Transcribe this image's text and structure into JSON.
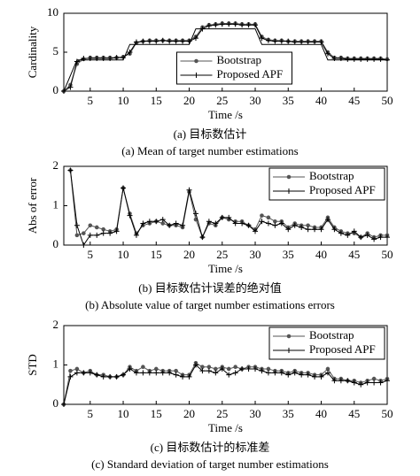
{
  "chart_data": [
    {
      "type": "line",
      "y_label": "Cardinality",
      "x_label": "Time /s",
      "caption_cn": "(a) 目标数估计",
      "caption_en": "(a) Mean of target number estimations",
      "x": [
        1,
        2,
        3,
        4,
        5,
        6,
        7,
        8,
        9,
        10,
        11,
        12,
        13,
        14,
        15,
        16,
        17,
        18,
        19,
        20,
        21,
        22,
        23,
        24,
        25,
        26,
        27,
        28,
        29,
        30,
        31,
        32,
        33,
        34,
        35,
        36,
        37,
        38,
        39,
        40,
        41,
        42,
        43,
        44,
        45,
        46,
        47,
        48,
        49,
        50
      ],
      "xlim": [
        1,
        50
      ],
      "xticks": [
        5,
        10,
        15,
        20,
        25,
        30,
        35,
        40,
        45,
        50
      ],
      "ylim": [
        0,
        10
      ],
      "yticks": [
        0,
        5,
        10
      ],
      "legend": "lower center",
      "series": [
        {
          "name": "Bootstrap",
          "color": "#555555",
          "marker": "o",
          "values": [
            0,
            0.8,
            3.5,
            4.1,
            4.3,
            4.3,
            4.3,
            4.3,
            4.3,
            4.4,
            4.8,
            6.2,
            6.4,
            6.5,
            6.5,
            6.5,
            6.5,
            6.5,
            6.5,
            6.5,
            7.0,
            8.2,
            8.5,
            8.6,
            8.7,
            8.7,
            8.7,
            8.6,
            8.6,
            8.6,
            7.0,
            6.6,
            6.5,
            6.5,
            6.4,
            6.4,
            6.4,
            6.4,
            6.4,
            6.4,
            5.0,
            4.3,
            4.3,
            4.2,
            4.2,
            4.2,
            4.2,
            4.2,
            4.2,
            4.1
          ]
        },
        {
          "name": "Proposed APF",
          "color": "#000000",
          "marker": "+",
          "values": [
            0,
            0.5,
            3.8,
            4.2,
            4.2,
            4.2,
            4.2,
            4.2,
            4.3,
            4.3,
            5.0,
            6.3,
            6.4,
            6.4,
            6.4,
            6.5,
            6.4,
            6.4,
            6.4,
            6.4,
            6.8,
            8.0,
            8.4,
            8.5,
            8.6,
            8.6,
            8.6,
            8.5,
            8.5,
            8.5,
            6.8,
            6.5,
            6.4,
            6.4,
            6.4,
            6.3,
            6.3,
            6.3,
            6.3,
            6.3,
            4.8,
            4.2,
            4.2,
            4.1,
            4.1,
            4.1,
            4.1,
            4.1,
            4.1,
            4.0
          ]
        },
        {
          "color": "#000000",
          "values": [
            0,
            2,
            4,
            4,
            4,
            4,
            4,
            4,
            4,
            4,
            6,
            6,
            6,
            6,
            6,
            6,
            6,
            6,
            6,
            6,
            8,
            8,
            8,
            8,
            8,
            8,
            8,
            8,
            8,
            8,
            6,
            6,
            6,
            6,
            6,
            6,
            6,
            6,
            6,
            6,
            4,
            4,
            4,
            4,
            4,
            4,
            4,
            4,
            4,
            4
          ]
        }
      ]
    },
    {
      "type": "line",
      "y_label": "Abs of error",
      "x_label": "Time /s",
      "caption_cn": "(b) 目标数估计误差的绝对值",
      "caption_en": "(b) Absolute value of target number estimations errors",
      "x": [
        1,
        2,
        3,
        4,
        5,
        6,
        7,
        8,
        9,
        10,
        11,
        12,
        13,
        14,
        15,
        16,
        17,
        18,
        19,
        20,
        21,
        22,
        23,
        24,
        25,
        26,
        27,
        28,
        29,
        30,
        31,
        32,
        33,
        34,
        35,
        36,
        37,
        38,
        39,
        40,
        41,
        42,
        43,
        44,
        45,
        46,
        47,
        48,
        49,
        50
      ],
      "xlim": [
        1,
        50
      ],
      "xticks": [
        5,
        10,
        15,
        20,
        25,
        30,
        35,
        40,
        45,
        50
      ],
      "ylim": [
        0,
        2
      ],
      "yticks": [
        0,
        1,
        2
      ],
      "legend": "upper right",
      "series": [
        {
          "name": "Bootstrap",
          "color": "#555555",
          "marker": "o",
          "values": [
            null,
            1.9,
            0.25,
            0.3,
            0.5,
            0.45,
            0.4,
            0.35,
            0.4,
            1.45,
            0.8,
            0.3,
            0.5,
            0.55,
            0.6,
            0.55,
            0.5,
            0.5,
            0.45,
            1.35,
            0.65,
            0.2,
            0.55,
            0.5,
            0.7,
            0.65,
            0.6,
            0.6,
            0.5,
            0.4,
            0.75,
            0.7,
            0.6,
            0.6,
            0.45,
            0.55,
            0.5,
            0.5,
            0.45,
            0.45,
            0.7,
            0.45,
            0.35,
            0.3,
            0.3,
            0.2,
            0.3,
            0.2,
            0.25,
            0.25
          ]
        },
        {
          "name": "Proposed APF",
          "color": "#000000",
          "marker": "+",
          "values": [
            null,
            1.9,
            0.5,
            0,
            0.25,
            0.25,
            0.3,
            0.3,
            0.35,
            1.45,
            0.75,
            0.25,
            0.55,
            0.6,
            0.6,
            0.65,
            0.5,
            0.55,
            0.5,
            1.4,
            0.8,
            0.2,
            0.6,
            0.55,
            0.7,
            0.7,
            0.55,
            0.55,
            0.5,
            0.35,
            0.6,
            0.55,
            0.5,
            0.55,
            0.4,
            0.5,
            0.45,
            0.4,
            0.4,
            0.4,
            0.65,
            0.4,
            0.3,
            0.25,
            0.35,
            0.2,
            0.25,
            0.15,
            0.2,
            0.2
          ]
        }
      ]
    },
    {
      "type": "line",
      "y_label": "STD",
      "x_label": "Time /s",
      "caption_cn": "(c) 目标数估计的标准差",
      "caption_en": "(c) Standard deviation of target number estimations",
      "x": [
        1,
        2,
        3,
        4,
        5,
        6,
        7,
        8,
        9,
        10,
        11,
        12,
        13,
        14,
        15,
        16,
        17,
        18,
        19,
        20,
        21,
        22,
        23,
        24,
        25,
        26,
        27,
        28,
        29,
        30,
        31,
        32,
        33,
        34,
        35,
        36,
        37,
        38,
        39,
        40,
        41,
        42,
        43,
        44,
        45,
        46,
        47,
        48,
        49,
        50
      ],
      "xlim": [
        1,
        50
      ],
      "xticks": [
        5,
        10,
        15,
        20,
        25,
        30,
        35,
        40,
        45,
        50
      ],
      "ylim": [
        0,
        2
      ],
      "yticks": [
        0,
        1,
        2
      ],
      "legend": "upper right",
      "series": [
        {
          "name": "Bootstrap",
          "color": "#555555",
          "marker": "o",
          "values": [
            0,
            0.85,
            0.9,
            0.8,
            0.85,
            0.75,
            0.75,
            0.7,
            0.7,
            0.75,
            0.95,
            0.85,
            0.95,
            0.85,
            0.9,
            0.85,
            0.85,
            0.85,
            0.75,
            0.75,
            1.05,
            0.95,
            0.95,
            0.9,
            0.95,
            0.9,
            0.95,
            0.9,
            0.95,
            0.95,
            0.9,
            0.9,
            0.85,
            0.85,
            0.8,
            0.85,
            0.8,
            0.8,
            0.75,
            0.75,
            0.9,
            0.65,
            0.65,
            0.6,
            0.6,
            0.55,
            0.6,
            0.65,
            0.6,
            0.65
          ]
        },
        {
          "name": "Proposed APF",
          "color": "#000000",
          "marker": "+",
          "values": [
            0,
            0.7,
            0.8,
            0.8,
            0.8,
            0.75,
            0.7,
            0.7,
            0.7,
            0.75,
            0.9,
            0.8,
            0.8,
            0.8,
            0.8,
            0.8,
            0.8,
            0.75,
            0.7,
            0.7,
            1.0,
            0.85,
            0.85,
            0.8,
            0.9,
            0.75,
            0.8,
            0.9,
            0.9,
            0.9,
            0.85,
            0.8,
            0.8,
            0.8,
            0.75,
            0.8,
            0.75,
            0.75,
            0.7,
            0.7,
            0.8,
            0.6,
            0.6,
            0.6,
            0.55,
            0.5,
            0.55,
            0.55,
            0.55,
            0.6
          ]
        }
      ]
    }
  ]
}
